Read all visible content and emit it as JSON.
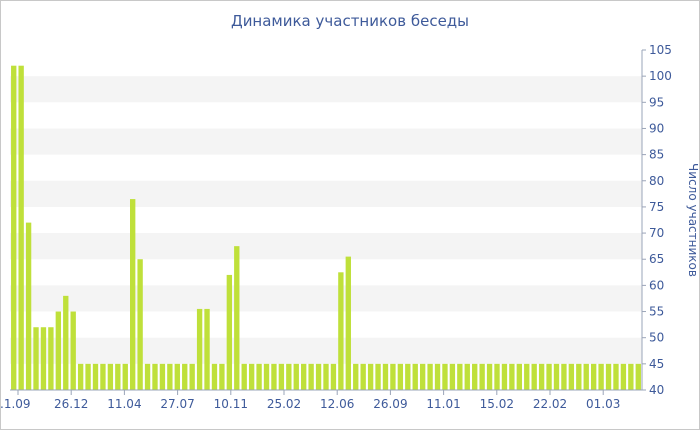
{
  "chart_data": {
    "type": "bar",
    "title": "Динамика участников беседы",
    "xlabel": "",
    "ylabel": "Число участников",
    "ylim": [
      40,
      105
    ],
    "yticks": [
      40,
      45,
      50,
      55,
      60,
      65,
      70,
      75,
      80,
      85,
      90,
      95,
      100,
      105
    ],
    "x_tick_labels": [
      ".1.09",
      "26.12",
      "11.04",
      "27.07",
      "10.11",
      "25.02",
      "12.06",
      "26.09",
      "11.01",
      "15.02",
      "22.02",
      "01.03"
    ],
    "grid": "horizontal bands",
    "legend": "none",
    "colors": {
      "bar": "#bfe03a",
      "band": "#f4f4f4",
      "text": "#3e5a9a"
    },
    "values": [
      102,
      102,
      72,
      52,
      52,
      52,
      55,
      58,
      55,
      45,
      45,
      45,
      45,
      45,
      45,
      45,
      76.5,
      65,
      45,
      45,
      45,
      45,
      45,
      45,
      45,
      55.5,
      55.5,
      45,
      45,
      62,
      67.5,
      45,
      45,
      45,
      45,
      45,
      45,
      45,
      45,
      45,
      45,
      45,
      45,
      45,
      62.5,
      65.5,
      45,
      45,
      45,
      45,
      45,
      45,
      45,
      45,
      45,
      45,
      45,
      45,
      45,
      45,
      45,
      45,
      45,
      45,
      45,
      45,
      45,
      45,
      45,
      45,
      45,
      45,
      45,
      45,
      45,
      45,
      45,
      45,
      45,
      45,
      45,
      45,
      45,
      45,
      45
    ]
  }
}
